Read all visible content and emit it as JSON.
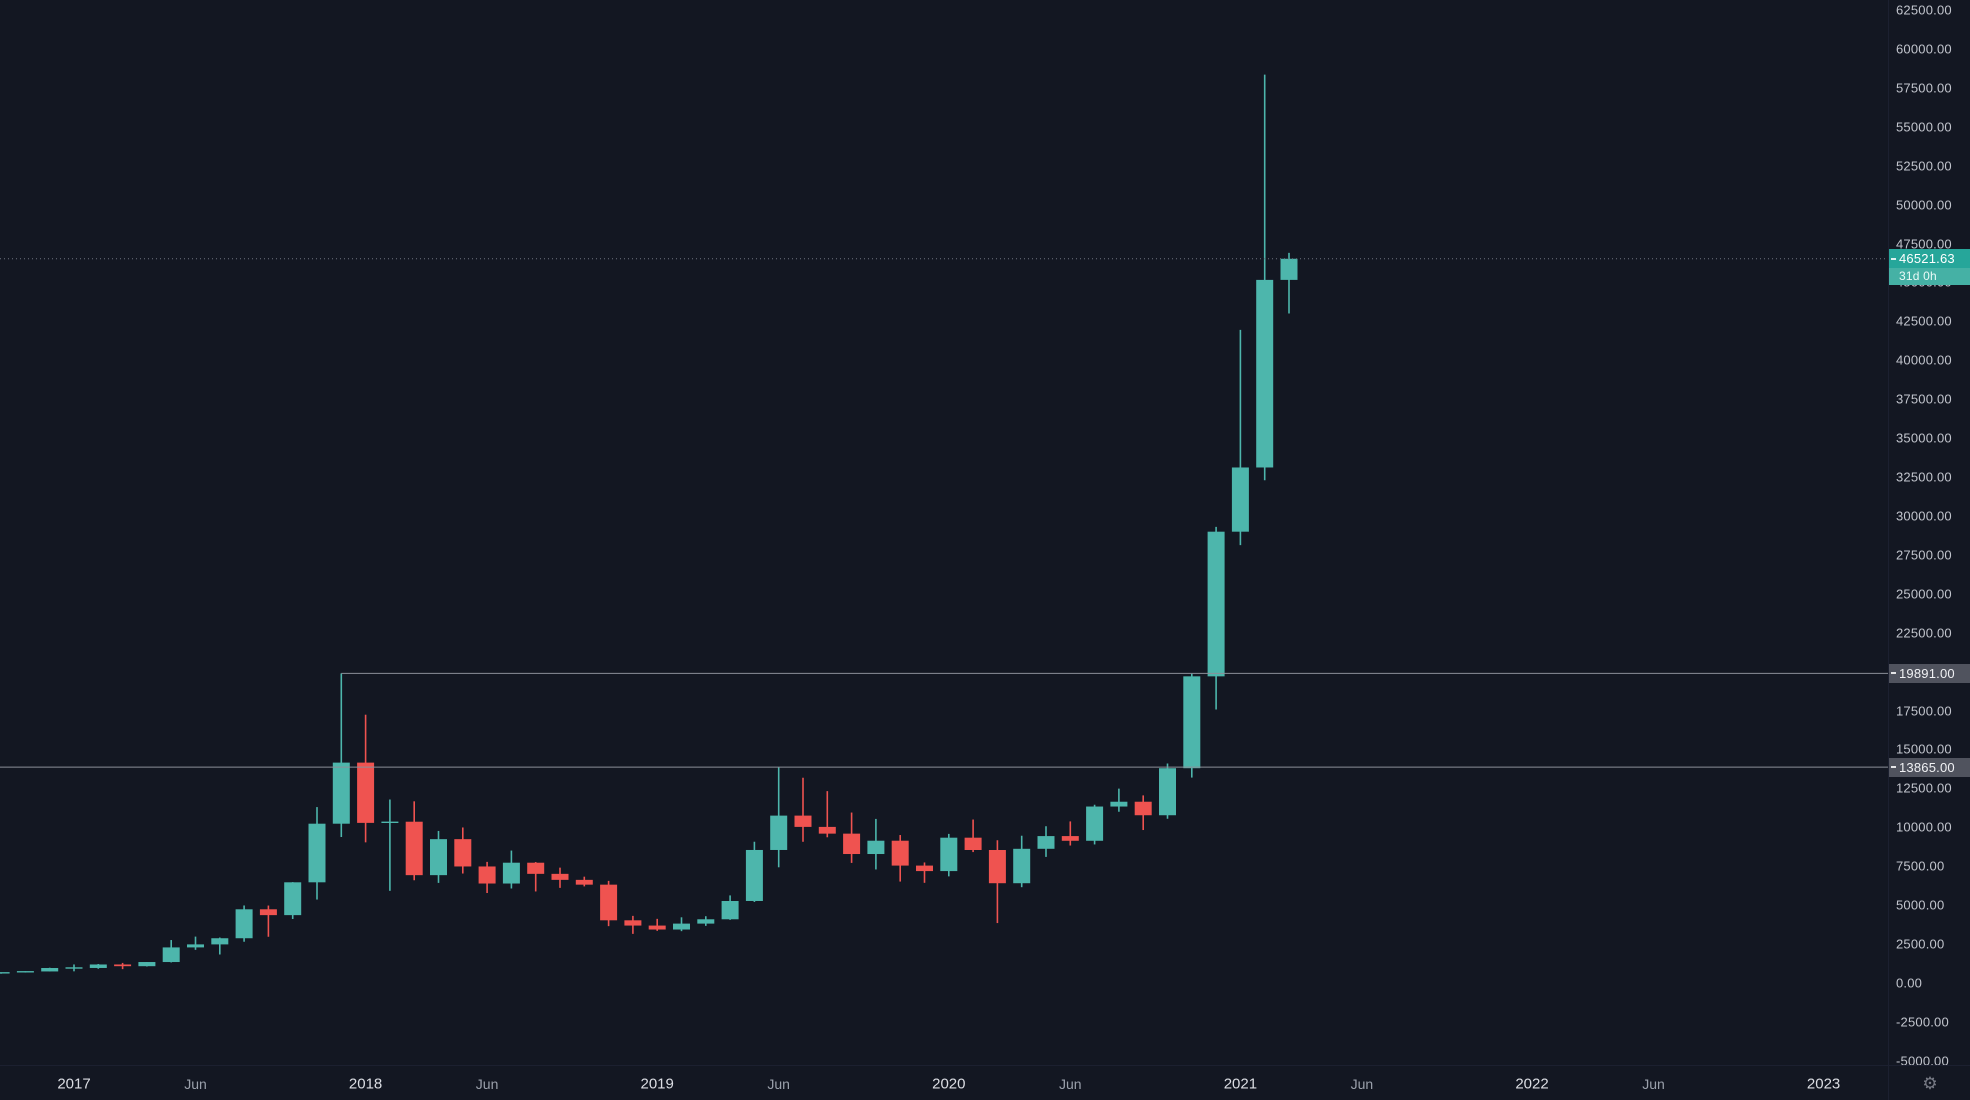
{
  "colors": {
    "background": "#131722",
    "up": "#4db6ac",
    "down": "#ef5350",
    "current_badge_bg": "#26a69a",
    "countdown_bg": "#45b1a5",
    "gray_badge_bg": "#50535e",
    "level_line": "#8b8f99",
    "current_line": "#6f7380",
    "axis_text": "#c2c5cd"
  },
  "price_axis": {
    "ticks": [
      "62500.00",
      "60000.00",
      "57500.00",
      "55000.00",
      "52500.00",
      "50000.00",
      "47500.00",
      "45000.00",
      "42500.00",
      "40000.00",
      "37500.00",
      "35000.00",
      "32500.00",
      "30000.00",
      "27500.00",
      "25000.00",
      "22500.00",
      "20000.00",
      "17500.00",
      "15000.00",
      "12500.00",
      "10000.00",
      "7500.00",
      "5000.00",
      "2500.00",
      "0.00",
      "-2500.00",
      "-5000.00"
    ],
    "current_price": {
      "label": "46521.63",
      "countdown": "31d 0h"
    },
    "level_labels": [
      {
        "label": "19891.00",
        "price": 19891
      },
      {
        "label": "13865.00",
        "price": 13865
      }
    ]
  },
  "time_axis": {
    "ticks": [
      {
        "label": "2017",
        "m": 3,
        "major": true
      },
      {
        "label": "Jun",
        "m": 8,
        "major": false
      },
      {
        "label": "2018",
        "m": 15,
        "major": true
      },
      {
        "label": "Jun",
        "m": 20,
        "major": false
      },
      {
        "label": "2019",
        "m": 27,
        "major": true
      },
      {
        "label": "Jun",
        "m": 32,
        "major": false
      },
      {
        "label": "2020",
        "m": 39,
        "major": true
      },
      {
        "label": "Jun",
        "m": 44,
        "major": false
      },
      {
        "label": "2021",
        "m": 51,
        "major": true
      },
      {
        "label": "Jun",
        "m": 56,
        "major": false
      },
      {
        "label": "2022",
        "m": 63,
        "major": true
      },
      {
        "label": "Jun",
        "m": 68,
        "major": false
      },
      {
        "label": "2023",
        "m": 75,
        "major": true
      }
    ]
  },
  "corner": {
    "gear_icon": "⚙"
  },
  "chart_data": {
    "type": "candlestick",
    "title": "",
    "interval": "1 month",
    "ohlc_format": [
      "time",
      "open",
      "high",
      "low",
      "close"
    ],
    "candles": [
      [
        "2016-10",
        609,
        680,
        595,
        698
      ],
      [
        "2016-11",
        698,
        755,
        670,
        742
      ],
      [
        "2016-12",
        742,
        982,
        740,
        963
      ],
      [
        "2017-01",
        963,
        1191,
        750,
        965
      ],
      [
        "2017-02",
        965,
        1220,
        915,
        1190
      ],
      [
        "2017-03",
        1190,
        1290,
        890,
        1080
      ],
      [
        "2017-04",
        1080,
        1347,
        1060,
        1347
      ],
      [
        "2017-05",
        1347,
        2760,
        1320,
        2286
      ],
      [
        "2017-06",
        2286,
        2980,
        2130,
        2480
      ],
      [
        "2017-07",
        2480,
        2920,
        1830,
        2875
      ],
      [
        "2017-08",
        2875,
        4980,
        2650,
        4735
      ],
      [
        "2017-09",
        4735,
        4975,
        2970,
        4360
      ],
      [
        "2017-10",
        4360,
        6480,
        4110,
        6468
      ],
      [
        "2017-11",
        6468,
        11300,
        5360,
        10233
      ],
      [
        "2017-12",
        10233,
        19891,
        9380,
        14156
      ],
      [
        "2018-01",
        14156,
        17234,
        9035,
        10285
      ],
      [
        "2018-02",
        10285,
        11786,
        5920,
        10360
      ],
      [
        "2018-03",
        10360,
        11670,
        6600,
        6928
      ],
      [
        "2018-04",
        6928,
        9767,
        6430,
        9240
      ],
      [
        "2018-05",
        9240,
        9990,
        7032,
        7485
      ],
      [
        "2018-06",
        7485,
        7780,
        5780,
        6390
      ],
      [
        "2018-07",
        6390,
        8507,
        6070,
        7727
      ],
      [
        "2018-08",
        7727,
        7770,
        5880,
        7011
      ],
      [
        "2018-09",
        7011,
        7410,
        6111,
        6625
      ],
      [
        "2018-10",
        6625,
        6830,
        6205,
        6317
      ],
      [
        "2018-11",
        6317,
        6560,
        3652,
        4027
      ],
      [
        "2018-12",
        4027,
        4312,
        3156,
        3689
      ],
      [
        "2019-01",
        3689,
        4120,
        3350,
        3435
      ],
      [
        "2019-02",
        3435,
        4220,
        3330,
        3815
      ],
      [
        "2019-03",
        3815,
        4290,
        3670,
        4093
      ],
      [
        "2019-04",
        4093,
        5627,
        4055,
        5268
      ],
      [
        "2019-05",
        5268,
        9074,
        5205,
        8545
      ],
      [
        "2019-06",
        8545,
        13865,
        7432,
        10752
      ],
      [
        "2019-07",
        10752,
        13185,
        9071,
        10027
      ],
      [
        "2019-08",
        10027,
        12325,
        9360,
        9594
      ],
      [
        "2019-09",
        9594,
        10949,
        7714,
        8285
      ],
      [
        "2019-10",
        8285,
        10540,
        7293,
        9140
      ],
      [
        "2019-11",
        9140,
        9505,
        6515,
        7542
      ],
      [
        "2019-12",
        7542,
        7743,
        6435,
        7189
      ],
      [
        "2020-01",
        7189,
        9578,
        6850,
        9334
      ],
      [
        "2020-02",
        9334,
        10500,
        8410,
        8543
      ],
      [
        "2020-03",
        8543,
        9170,
        3850,
        6410
      ],
      [
        "2020-04",
        6410,
        9460,
        6155,
        8620
      ],
      [
        "2020-05",
        8620,
        10070,
        8100,
        9437
      ],
      [
        "2020-06",
        9437,
        10380,
        8830,
        9135
      ],
      [
        "2020-07",
        9135,
        11450,
        8900,
        11335
      ],
      [
        "2020-08",
        11335,
        12486,
        11000,
        11644
      ],
      [
        "2020-09",
        11644,
        12050,
        9825,
        10776
      ],
      [
        "2020-10",
        10776,
        14100,
        10550,
        13797
      ],
      [
        "2020-11",
        13797,
        19863,
        13195,
        19698
      ],
      [
        "2020-12",
        19698,
        29300,
        17572,
        28990
      ],
      [
        "2021-01",
        28990,
        41950,
        28130,
        33114
      ],
      [
        "2021-02",
        33114,
        58352,
        32296,
        45164
      ],
      [
        "2021-03",
        45164,
        46900,
        43006,
        46521.63
      ]
    ],
    "price_lines": [
      {
        "role": "current-price",
        "price": 46521.63,
        "style": "dotted"
      },
      {
        "role": "level",
        "price": 19891,
        "style": "solid",
        "from_month": "2017-12"
      },
      {
        "role": "level",
        "price": 13865,
        "style": "solid"
      }
    ],
    "y_axis": {
      "visible_min": -5000,
      "visible_max": 62500,
      "tick_step": 2500
    },
    "x_axis_visible_range": [
      "2016-10",
      "2023-04"
    ],
    "legend_position": "none",
    "grid": false
  }
}
